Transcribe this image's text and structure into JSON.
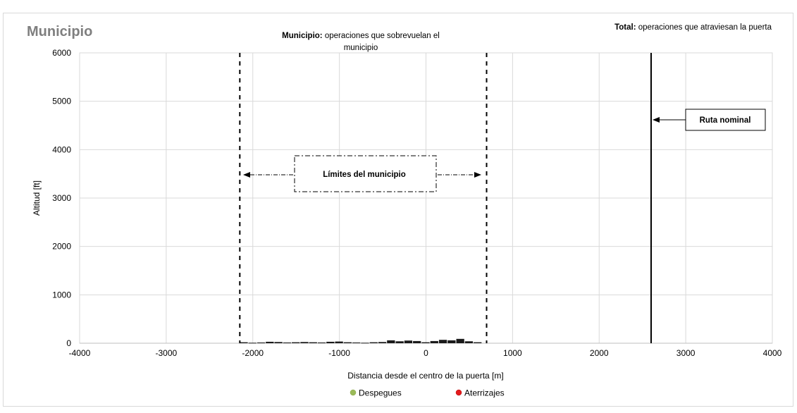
{
  "chart_data": {
    "type": "scatter",
    "title": "Municipio",
    "xlabel": "Distancia desde el centro de la puerta [m]",
    "ylabel": "Altitud [ft]",
    "xlim": [
      -4000,
      4000
    ],
    "ylim": [
      0,
      6000
    ],
    "xticks": [
      -4000,
      -3000,
      -2000,
      -1000,
      0,
      1000,
      2000,
      3000,
      4000
    ],
    "yticks": [
      0,
      1000,
      2000,
      3000,
      4000,
      5000,
      6000
    ],
    "grid": true,
    "legend_position": "bottom",
    "series": [
      {
        "name": "Despegues",
        "color": "#9bbb59",
        "points": []
      },
      {
        "name": "Aterrizajes",
        "color": "#e41a1c",
        "points": []
      }
    ],
    "traffic_bars": {
      "color": "#1a1a1a",
      "points": [
        [
          -2100,
          20
        ],
        [
          -2000,
          10
        ],
        [
          -1900,
          15
        ],
        [
          -1800,
          30
        ],
        [
          -1700,
          25
        ],
        [
          -1600,
          15
        ],
        [
          -1500,
          20
        ],
        [
          -1400,
          25
        ],
        [
          -1300,
          20
        ],
        [
          -1200,
          15
        ],
        [
          -1100,
          30
        ],
        [
          -1000,
          35
        ],
        [
          -900,
          20
        ],
        [
          -800,
          15
        ],
        [
          -700,
          10
        ],
        [
          -600,
          20
        ],
        [
          -500,
          25
        ],
        [
          -400,
          60
        ],
        [
          -300,
          40
        ],
        [
          -200,
          55
        ],
        [
          -100,
          45
        ],
        [
          0,
          20
        ],
        [
          100,
          45
        ],
        [
          200,
          70
        ],
        [
          300,
          60
        ],
        [
          400,
          90
        ],
        [
          500,
          40
        ],
        [
          600,
          20
        ]
      ]
    },
    "municipio_limits": [
      -2150,
      700
    ],
    "ruta_nominal_x": 2600,
    "annotations": {
      "top_left_title": "Municipio",
      "municipio_note_bold": "Municipio:",
      "municipio_note_line1": " operaciones que sobrevuelan el",
      "municipio_note_line2": "municipio",
      "total_note_bold": "Total:",
      "total_note_text": " operaciones que atraviesan la puerta",
      "limites_label": "Límites del municipio",
      "ruta_label": "Ruta nominal"
    },
    "legend": [
      {
        "label": "Despegues",
        "color": "#9bbb59"
      },
      {
        "label": "Aterrizajes",
        "color": "#e41a1c"
      }
    ]
  }
}
